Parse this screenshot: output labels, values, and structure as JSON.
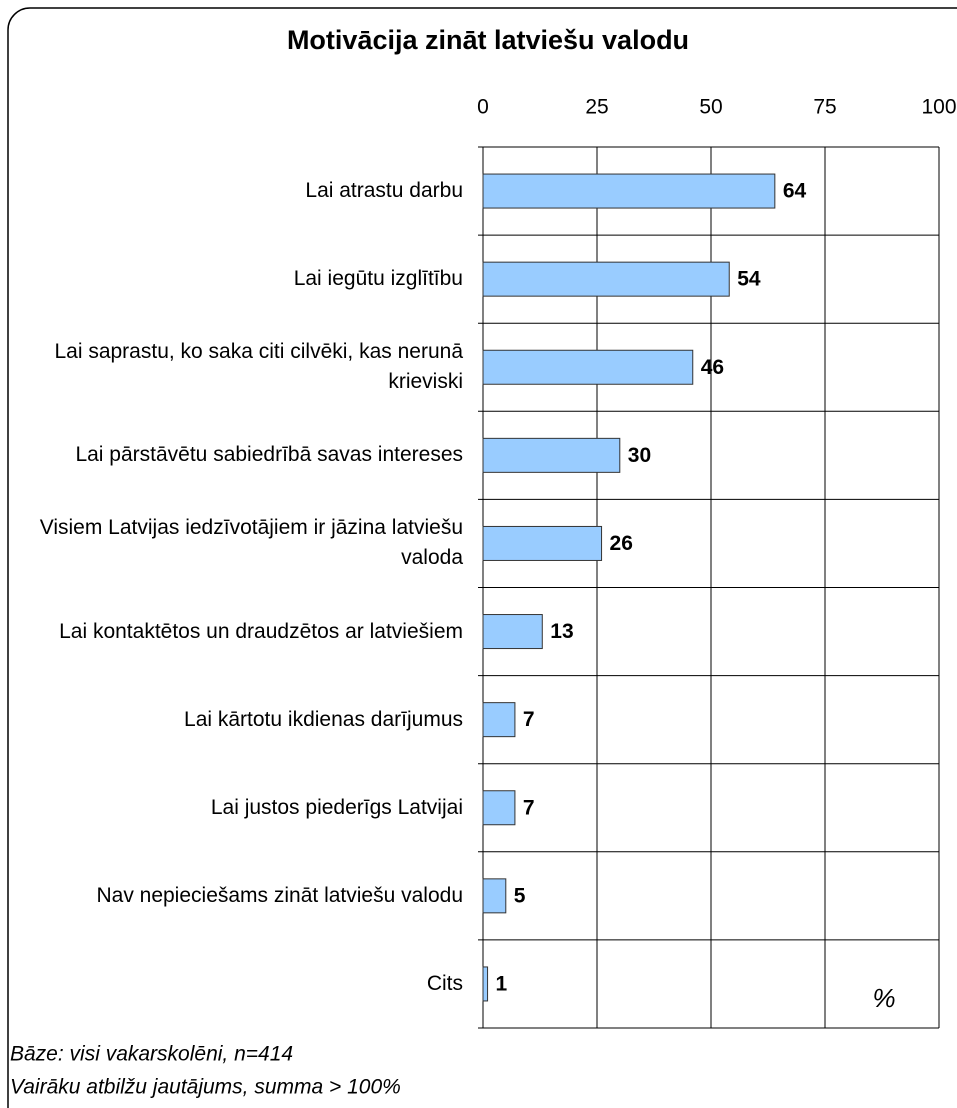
{
  "chart_data": {
    "type": "bar",
    "orientation": "horizontal",
    "title": "Motivācija zināt latviešu valodu",
    "categories": [
      "Lai atrastu darbu",
      "Lai iegūtu izglītību",
      "Lai saprastu, ko saka citi cilvēki, kas nerunā krieviski",
      "Lai pārstāvētu sabiedrībā savas intereses",
      "Visiem Latvijas iedzīvotājiem ir jāzina latviešu valoda",
      "Lai kontaktētos un draudzētos ar latviešiem",
      "Lai kārtotu ikdienas darījumus",
      "Lai justos piederīgs Latvijai",
      "Nav nepieciešams zināt latviešu valodu",
      "Cits"
    ],
    "values": [
      64,
      54,
      46,
      30,
      26,
      13,
      7,
      7,
      5,
      1
    ],
    "color": "#99ccff",
    "xlim": [
      0,
      100
    ],
    "xticks": [
      0,
      25,
      50,
      75,
      100
    ],
    "grid": true,
    "unit": "%",
    "notes": [
      "Bāze: visi vakarskolēni, n=414",
      "Vairāku atbilžu jautājums, summa > 100%"
    ]
  }
}
